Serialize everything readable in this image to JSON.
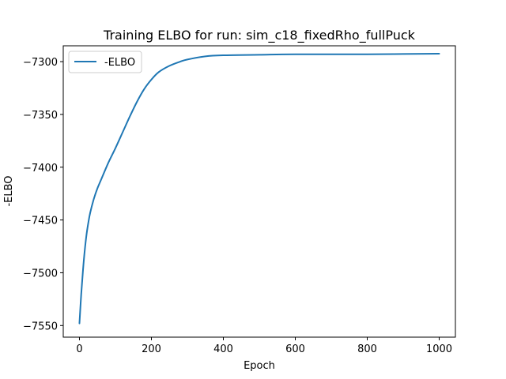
{
  "chart_data": {
    "type": "line",
    "title": "Training ELBO for run: sim_c18_fixedRho_fullPuck",
    "xlabel": "Epoch",
    "ylabel": "-ELBO",
    "xlim": [
      -45,
      1045
    ],
    "ylim": [
      -7561,
      -7285
    ],
    "xticks": [
      0,
      200,
      400,
      600,
      800,
      1000
    ],
    "yticks": [
      -7550,
      -7500,
      -7450,
      -7400,
      -7350,
      -7300
    ],
    "xtick_labels": [
      "0",
      "200",
      "400",
      "600",
      "800",
      "1000"
    ],
    "ytick_labels": [
      "−7550",
      "−7500",
      "−7450",
      "−7400",
      "−7350",
      "−7300"
    ],
    "grid": false,
    "legend_position": "top-left",
    "series": [
      {
        "name": "-ELBO",
        "color": "#1f77b4",
        "x": [
          0,
          5,
          10,
          15,
          20,
          25,
          30,
          40,
          50,
          60,
          80,
          100,
          120,
          140,
          160,
          180,
          200,
          220,
          250,
          280,
          300,
          350,
          400,
          500,
          600,
          800,
          1000
        ],
        "y": [
          -7548,
          -7520,
          -7497,
          -7478,
          -7463,
          -7452,
          -7443,
          -7430,
          -7420,
          -7412,
          -7396,
          -7382,
          -7367,
          -7352,
          -7338,
          -7326,
          -7317,
          -7310,
          -7304,
          -7300,
          -7298,
          -7295,
          -7294,
          -7293.5,
          -7293,
          -7293,
          -7292.5
        ]
      }
    ]
  }
}
